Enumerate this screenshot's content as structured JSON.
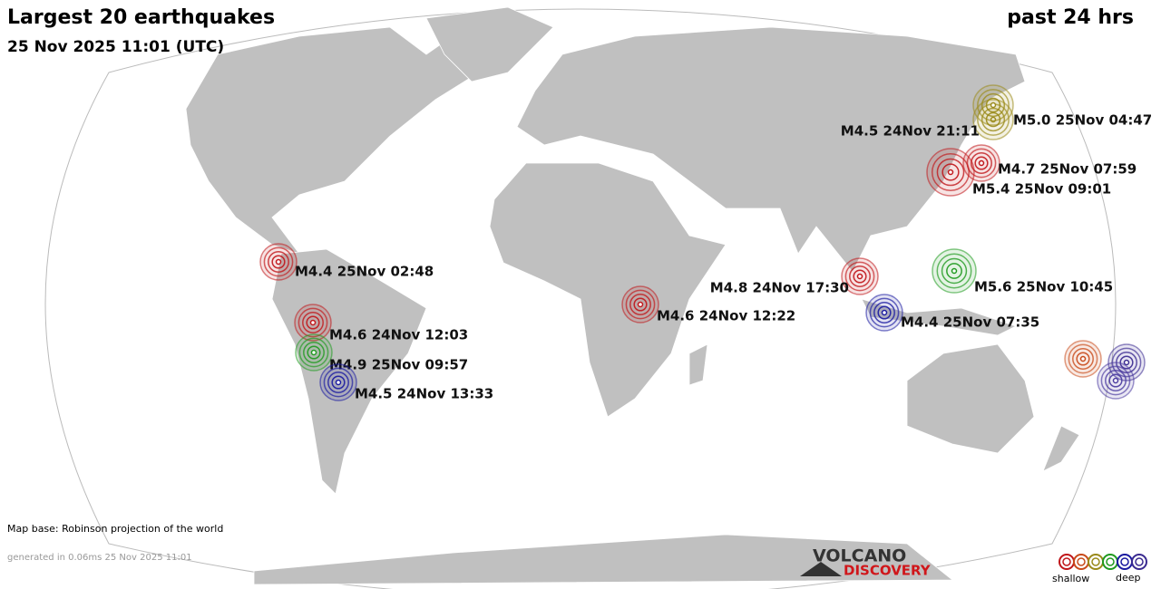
{
  "header": {
    "title": "Largest 20 earthquakes",
    "subtitle": "25 Nov 2025 11:01 (UTC)",
    "period": "past 24 hrs"
  },
  "quakes": [
    {
      "label": "M5.0 25Nov 04:47",
      "color": "#9a8a1a"
    },
    {
      "label": "M4.5 24Nov 21:11",
      "color": "#9a8a1a"
    },
    {
      "label": "M4.7 25Nov 07:59",
      "color": "#c0161a"
    },
    {
      "label": "M5.4 25Nov 09:01",
      "color": "#c0161a"
    },
    {
      "label": "M4.4 25Nov 02:48",
      "color": "#c0161a"
    },
    {
      "label": "M5.6 25Nov 10:45",
      "color": "#1f9a1f"
    },
    {
      "label": "M4.8 24Nov 17:30",
      "color": "#c0161a"
    },
    {
      "label": "M4.6 24Nov 12:22",
      "color": "#c0161a"
    },
    {
      "label": "M4.4 25Nov 07:35",
      "color": "#1a1aa0"
    },
    {
      "label": "M4.6 24Nov 12:03",
      "color": "#c0161a"
    },
    {
      "label": "M4.9 25Nov 09:57",
      "color": "#1f9a1f"
    },
    {
      "label": "M4.5 24Nov 13:33",
      "color": "#1a1aa0"
    }
  ],
  "footer": {
    "map_base": "Map base: Robinson projection of the world",
    "generated": "generated in 0.06ms 25 Nov 2025 11:01"
  },
  "logo": {
    "line1": "VOLCANO",
    "line2": "DISCOVERY"
  },
  "legend": {
    "shallow": "shallow",
    "deep": "deep"
  }
}
